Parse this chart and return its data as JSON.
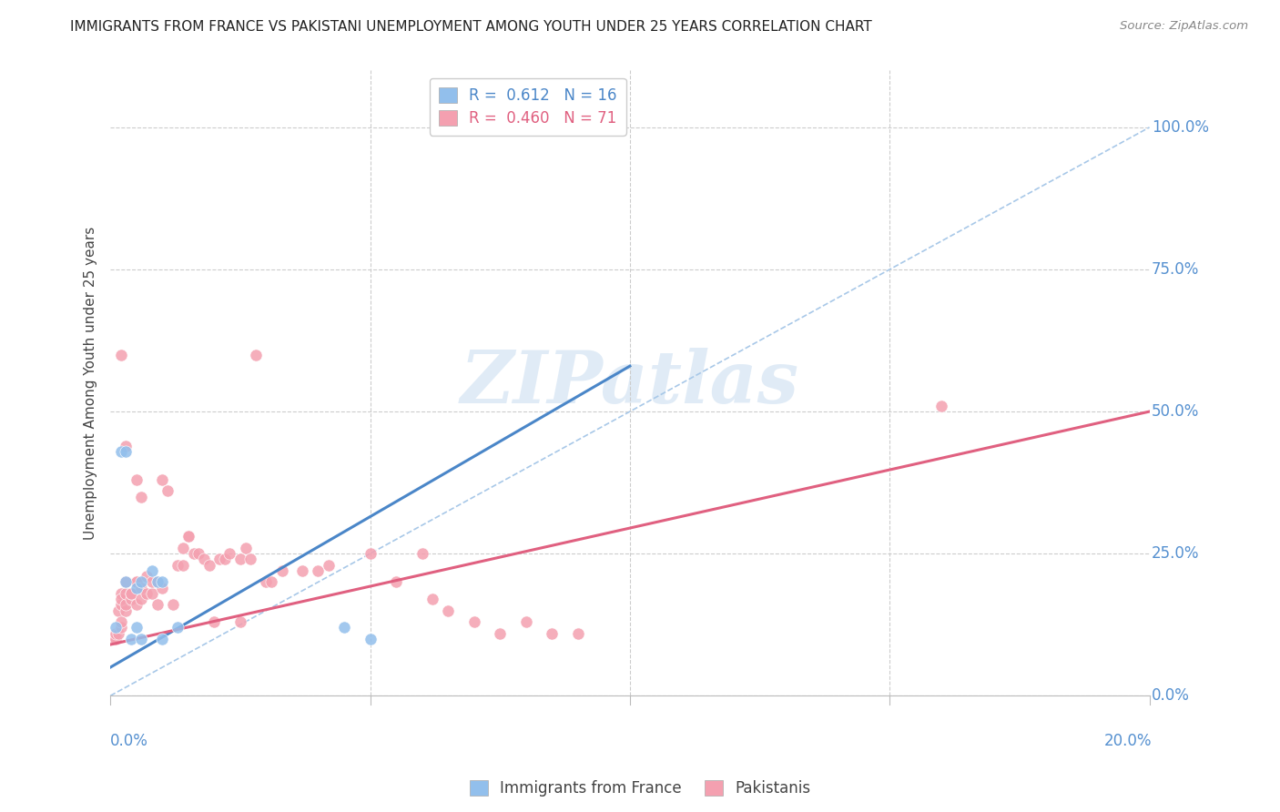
{
  "title": "IMMIGRANTS FROM FRANCE VS PAKISTANI UNEMPLOYMENT AMONG YOUTH UNDER 25 YEARS CORRELATION CHART",
  "source": "Source: ZipAtlas.com",
  "ylabel": "Unemployment Among Youth under 25 years",
  "right_yticks": [
    0.0,
    0.25,
    0.5,
    0.75,
    1.0
  ],
  "right_yticklabels": [
    "0.0%",
    "25.0%",
    "50.0%",
    "75.0%",
    "100.0%"
  ],
  "blue_color": "#92BFEC",
  "pink_color": "#F4A0B0",
  "blue_line_color": "#4A86C8",
  "pink_line_color": "#E06080",
  "blue_legend_text": "R =  0.612   N = 16",
  "pink_legend_text": "R =  0.460   N = 71",
  "legend_blue_label": "Immigrants from France",
  "legend_pink_label": "Pakistanis",
  "watermark_text": "ZIPatlas",
  "blue_scatter_x": [
    0.001,
    0.002,
    0.003,
    0.003,
    0.004,
    0.005,
    0.005,
    0.006,
    0.006,
    0.008,
    0.009,
    0.01,
    0.01,
    0.013,
    0.045,
    0.05
  ],
  "blue_scatter_y": [
    0.12,
    0.43,
    0.43,
    0.2,
    0.1,
    0.19,
    0.12,
    0.2,
    0.1,
    0.22,
    0.2,
    0.1,
    0.2,
    0.12,
    0.12,
    0.1
  ],
  "pink_scatter_x": [
    0.0005,
    0.001,
    0.001,
    0.0015,
    0.0015,
    0.002,
    0.002,
    0.002,
    0.002,
    0.002,
    0.002,
    0.003,
    0.003,
    0.003,
    0.003,
    0.003,
    0.004,
    0.004,
    0.004,
    0.005,
    0.005,
    0.005,
    0.005,
    0.006,
    0.006,
    0.006,
    0.007,
    0.007,
    0.008,
    0.008,
    0.009,
    0.009,
    0.01,
    0.01,
    0.011,
    0.012,
    0.013,
    0.014,
    0.014,
    0.015,
    0.015,
    0.016,
    0.017,
    0.018,
    0.019,
    0.02,
    0.021,
    0.022,
    0.023,
    0.025,
    0.025,
    0.026,
    0.027,
    0.028,
    0.03,
    0.031,
    0.033,
    0.037,
    0.04,
    0.042,
    0.05,
    0.055,
    0.06,
    0.062,
    0.065,
    0.07,
    0.075,
    0.08,
    0.085,
    0.09,
    0.16
  ],
  "pink_scatter_y": [
    0.1,
    0.1,
    0.11,
    0.11,
    0.15,
    0.12,
    0.13,
    0.16,
    0.18,
    0.17,
    0.6,
    0.15,
    0.16,
    0.18,
    0.2,
    0.44,
    0.17,
    0.18,
    0.18,
    0.38,
    0.16,
    0.2,
    0.2,
    0.17,
    0.19,
    0.35,
    0.18,
    0.21,
    0.18,
    0.2,
    0.16,
    0.2,
    0.19,
    0.38,
    0.36,
    0.16,
    0.23,
    0.23,
    0.26,
    0.28,
    0.28,
    0.25,
    0.25,
    0.24,
    0.23,
    0.13,
    0.24,
    0.24,
    0.25,
    0.13,
    0.24,
    0.26,
    0.24,
    0.6,
    0.2,
    0.2,
    0.22,
    0.22,
    0.22,
    0.23,
    0.25,
    0.2,
    0.25,
    0.17,
    0.15,
    0.13,
    0.11,
    0.13,
    0.11,
    0.11,
    0.51
  ],
  "blue_line_x": [
    0.0,
    0.1
  ],
  "blue_line_y": [
    0.05,
    0.58
  ],
  "pink_line_x": [
    0.0,
    0.2
  ],
  "pink_line_y": [
    0.09,
    0.5
  ],
  "diag_line_x": [
    0.0,
    0.2
  ],
  "diag_line_y": [
    0.0,
    1.0
  ],
  "xmin": 0.0,
  "xmax": 0.2,
  "ymin": 0.0,
  "ymax": 1.1,
  "xtick_positions": [
    0.0,
    0.05,
    0.1,
    0.15,
    0.2
  ],
  "ytick_gridlines": [
    0.0,
    0.25,
    0.5,
    0.75,
    1.0
  ]
}
